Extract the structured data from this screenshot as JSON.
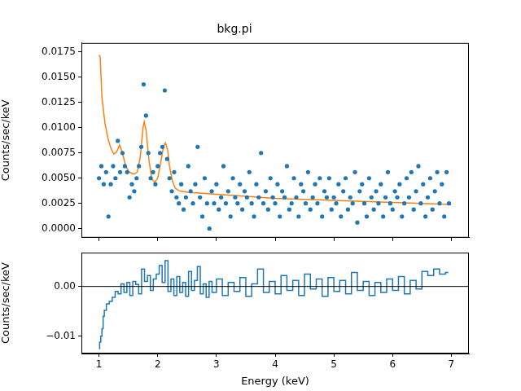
{
  "chart_data": [
    {
      "type": "scatter",
      "title": "bkg.pi",
      "y_label": "Counts/sec/keV",
      "xlim": [
        0.7,
        7.3
      ],
      "xticks": [
        1,
        2,
        3,
        4,
        5,
        6,
        7
      ],
      "ylim": [
        -0.0009,
        0.0184
      ],
      "yticks": [
        {
          "value": 0,
          "label": "0.0000"
        },
        {
          "value": 0.0025,
          "label": "0.0025"
        },
        {
          "value": 0.005,
          "label": "0.0050"
        },
        {
          "value": 0.0075,
          "label": "0.0075"
        },
        {
          "value": 0.01,
          "label": "0.0100"
        },
        {
          "value": 0.0125,
          "label": "0.0125"
        },
        {
          "value": 0.015,
          "label": "0.0150"
        },
        {
          "value": 0.0175,
          "label": "0.0175"
        }
      ],
      "grid": false,
      "tick_labels": "y",
      "series": [
        {
          "type": "scatter",
          "color": "#1f77b4",
          "marker": "circle",
          "x": [
            1.0,
            1.04,
            1.08,
            1.12,
            1.16,
            1.2,
            1.24,
            1.28,
            1.32,
            1.36,
            1.4,
            1.44,
            1.48,
            1.52,
            1.56,
            1.6,
            1.64,
            1.68,
            1.72,
            1.76,
            1.8,
            1.84,
            1.88,
            1.92,
            1.96,
            2.0,
            2.04,
            2.08,
            2.12,
            2.16,
            2.2,
            2.24,
            2.28,
            2.32,
            2.36,
            2.4,
            2.44,
            2.48,
            2.52,
            2.56,
            2.6,
            2.64,
            2.68,
            2.72,
            2.76,
            2.8,
            2.84,
            2.88,
            2.92,
            2.96,
            3.0,
            3.04,
            3.08,
            3.12,
            3.16,
            3.2,
            3.24,
            3.28,
            3.32,
            3.36,
            3.4,
            3.44,
            3.48,
            3.52,
            3.56,
            3.6,
            3.64,
            3.68,
            3.72,
            3.76,
            3.8,
            3.84,
            3.88,
            3.92,
            3.96,
            4.0,
            4.04,
            4.08,
            4.12,
            4.16,
            4.2,
            4.24,
            4.28,
            4.32,
            4.36,
            4.4,
            4.44,
            4.48,
            4.52,
            4.56,
            4.6,
            4.64,
            4.68,
            4.72,
            4.76,
            4.8,
            4.84,
            4.88,
            4.92,
            4.96,
            5.0,
            5.04,
            5.08,
            5.12,
            5.16,
            5.2,
            5.24,
            5.28,
            5.32,
            5.36,
            5.4,
            5.44,
            5.48,
            5.52,
            5.56,
            5.6,
            5.64,
            5.68,
            5.72,
            5.76,
            5.8,
            5.84,
            5.88,
            5.92,
            5.96,
            6.0,
            6.04,
            6.08,
            6.12,
            6.16,
            6.2,
            6.24,
            6.28,
            6.32,
            6.36,
            6.4,
            6.44,
            6.48,
            6.52,
            6.56,
            6.6,
            6.64,
            6.68,
            6.72,
            6.76,
            6.8,
            6.84,
            6.88,
            6.92,
            6.96
          ],
          "values": [
            0.005,
            0.0062,
            0.0044,
            0.0056,
            0.0012,
            0.0044,
            0.0062,
            0.005,
            0.0087,
            0.0056,
            0.0075,
            0.0062,
            0.0056,
            0.0031,
            0.0044,
            0.0037,
            0.005,
            0.0062,
            0.0081,
            0.0143,
            0.0112,
            0.0075,
            0.005,
            0.0056,
            0.0044,
            0.0062,
            0.0075,
            0.0081,
            0.0137,
            0.0069,
            0.005,
            0.0037,
            0.0056,
            0.0031,
            0.0025,
            0.0044,
            0.0019,
            0.0031,
            0.0062,
            0.0037,
            0.0025,
            0.0044,
            0.0081,
            0.0031,
            0.0012,
            0.005,
            0.0025,
            0.0,
            0.0037,
            0.0025,
            0.0044,
            0.0019,
            0.0031,
            0.0062,
            0.0025,
            0.0037,
            0.0012,
            0.005,
            0.0031,
            0.0025,
            0.0044,
            0.0019,
            0.0037,
            0.0031,
            0.0056,
            0.0025,
            0.0012,
            0.0044,
            0.0031,
            0.0075,
            0.0025,
            0.0037,
            0.0019,
            0.005,
            0.0031,
            0.0025,
            0.0044,
            0.0012,
            0.0037,
            0.0031,
            0.0062,
            0.0019,
            0.0025,
            0.005,
            0.0031,
            0.0012,
            0.0044,
            0.0037,
            0.0025,
            0.0056,
            0.0019,
            0.0031,
            0.0044,
            0.0025,
            0.005,
            0.0012,
            0.0037,
            0.0031,
            0.005,
            0.0019,
            0.0031,
            0.0025,
            0.0044,
            0.0012,
            0.0037,
            0.005,
            0.0019,
            0.0031,
            0.0025,
            0.0056,
            0.0006,
            0.0037,
            0.0044,
            0.0025,
            0.0012,
            0.005,
            0.0031,
            0.0019,
            0.0037,
            0.0025,
            0.0044,
            0.0012,
            0.0031,
            0.0056,
            0.0025,
            0.0019,
            0.0037,
            0.0031,
            0.0044,
            0.0012,
            0.0025,
            0.005,
            0.0031,
            0.0056,
            0.0019,
            0.0037,
            0.0062,
            0.0025,
            0.0044,
            0.0012,
            0.0031,
            0.005,
            0.0019,
            0.0037,
            0.0056,
            0.0025,
            0.0044,
            0.0012,
            0.0056,
            0.0025
          ]
        },
        {
          "type": "line",
          "color": "#ff7f0e",
          "line_style": "solid",
          "x": [
            1.0,
            1.02,
            1.05,
            1.1,
            1.15,
            1.2,
            1.25,
            1.3,
            1.35,
            1.4,
            1.45,
            1.5,
            1.55,
            1.6,
            1.65,
            1.7,
            1.75,
            1.77,
            1.8,
            1.85,
            1.9,
            1.95,
            2.0,
            2.05,
            2.1,
            2.13,
            2.17,
            2.2,
            2.25,
            2.3,
            2.35,
            2.4,
            2.5,
            3.0,
            3.5,
            4.0,
            4.5,
            5.0,
            5.5,
            6.0,
            6.5,
            7.0
          ],
          "values": [
            0.0172,
            0.017,
            0.013,
            0.0105,
            0.009,
            0.008,
            0.0074,
            0.0076,
            0.0083,
            0.0075,
            0.0063,
            0.0057,
            0.0055,
            0.0054,
            0.0056,
            0.007,
            0.01,
            0.0106,
            0.0098,
            0.0068,
            0.0049,
            0.0046,
            0.005,
            0.0065,
            0.0082,
            0.0085,
            0.0078,
            0.0062,
            0.0047,
            0.004,
            0.0038,
            0.0037,
            0.0036,
            0.0034,
            0.0032,
            0.003,
            0.0029,
            0.0028,
            0.0027,
            0.0026,
            0.0025,
            0.0024
          ]
        }
      ]
    },
    {
      "type": "line",
      "x_label": "Energy (keV)",
      "y_label": "Counts/sec/keV",
      "xlim": [
        0.7,
        7.3
      ],
      "xticks": [
        1,
        2,
        3,
        4,
        5,
        6,
        7
      ],
      "ylim": [
        -0.0135,
        0.0068
      ],
      "yticks": [
        {
          "value": -0.01,
          "label": "−0.01"
        },
        {
          "value": 0,
          "label": "0.00"
        }
      ],
      "grid": false,
      "hline": 0,
      "series": [
        {
          "type": "line",
          "color": "#1f77b4",
          "line_style": "steps",
          "x": [
            1.0,
            1.02,
            1.04,
            1.06,
            1.08,
            1.1,
            1.15,
            1.2,
            1.25,
            1.3,
            1.35,
            1.4,
            1.45,
            1.5,
            1.55,
            1.6,
            1.65,
            1.7,
            1.75,
            1.8,
            1.85,
            1.9,
            1.95,
            2.0,
            2.05,
            2.1,
            2.15,
            2.2,
            2.25,
            2.3,
            2.35,
            2.4,
            2.45,
            2.5,
            2.55,
            2.6,
            2.65,
            2.7,
            2.75,
            2.8,
            2.85,
            2.9,
            2.95,
            3.05,
            3.15,
            3.25,
            3.35,
            3.45,
            3.55,
            3.65,
            3.75,
            3.85,
            3.95,
            4.05,
            4.15,
            4.25,
            4.35,
            4.45,
            4.55,
            4.65,
            4.75,
            4.85,
            4.95,
            5.05,
            5.15,
            5.25,
            5.35,
            5.45,
            5.55,
            5.65,
            5.75,
            5.85,
            5.95,
            6.05,
            6.15,
            6.25,
            6.35,
            6.45,
            6.55,
            6.65,
            6.75,
            6.85,
            6.95
          ],
          "values": [
            -0.0125,
            -0.0112,
            -0.01,
            -0.0085,
            -0.006,
            -0.0048,
            -0.0035,
            -0.003,
            -0.0022,
            -0.001,
            -0.0015,
            0.0005,
            -0.0012,
            0.0008,
            -0.0018,
            0.001,
            0.0004,
            -0.0015,
            0.0035,
            0.001,
            0.0022,
            -0.0008,
            0.0015,
            0.0025,
            0.0042,
            0.0008,
            0.0052,
            -0.001,
            0.0015,
            -0.0018,
            0.002,
            -0.0012,
            0.0008,
            -0.002,
            0.003,
            -0.0008,
            0.0012,
            0.004,
            -0.0015,
            0.0005,
            -0.0022,
            0.001,
            -0.0012,
            0.0015,
            -0.0018,
            0.0008,
            -0.001,
            0.0018,
            -0.002,
            0.0005,
            0.0035,
            -0.0012,
            0.001,
            -0.0015,
            0.0022,
            -0.0008,
            0.0012,
            -0.0018,
            0.0025,
            -0.0005,
            0.0015,
            -0.002,
            0.0018,
            -0.001,
            0.0012,
            -0.0015,
            0.0028,
            -0.0008,
            0.001,
            -0.0018,
            0.0008,
            -0.0012,
            0.0015,
            -0.0008,
            0.002,
            -0.0015,
            0.0012,
            -0.0005,
            0.003,
            0.0022,
            0.0035,
            0.0025,
            0.0028
          ]
        }
      ]
    }
  ]
}
